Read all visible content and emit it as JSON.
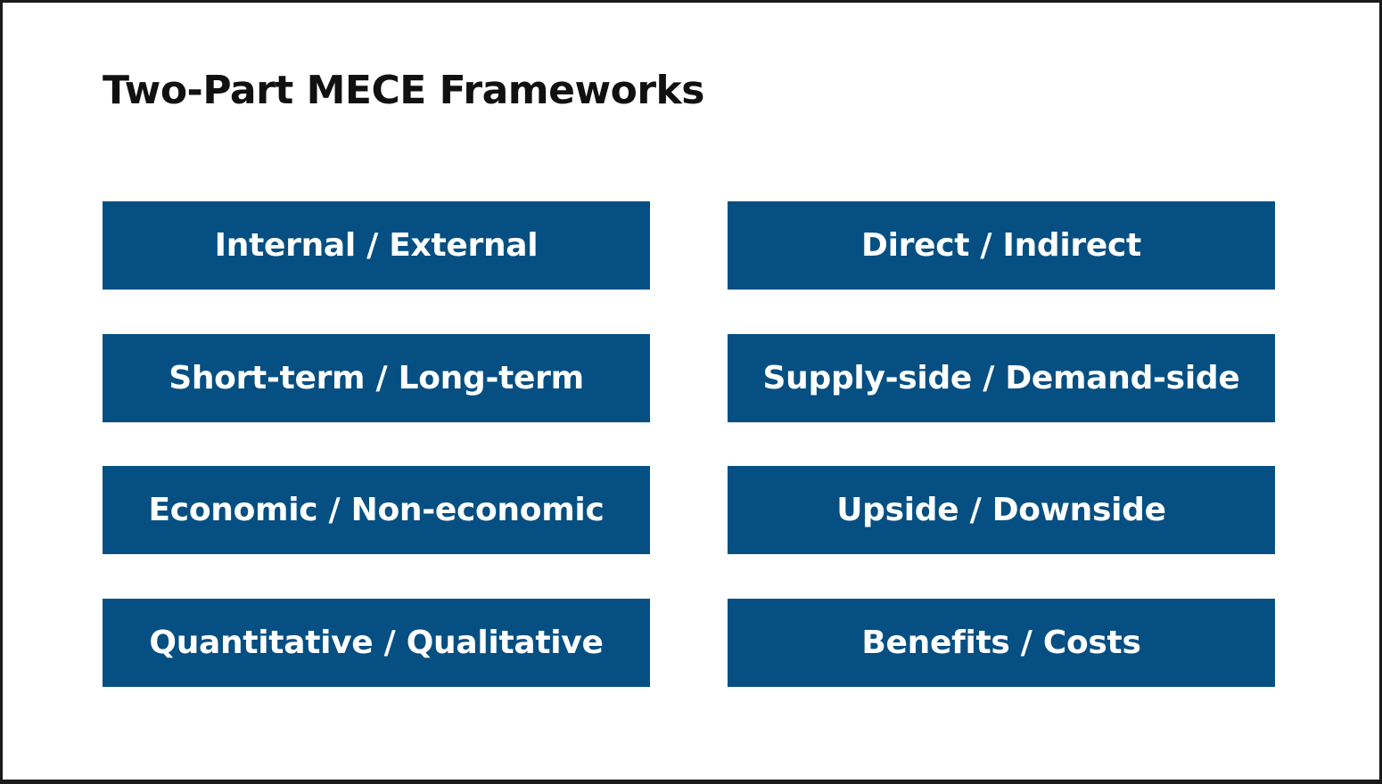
{
  "slide": {
    "title": "Two-Part MECE Frameworks",
    "colors": {
      "box_fill": "#054f82",
      "box_text": "#ffffff",
      "title_text": "#111111",
      "background": "#ffffff"
    },
    "frameworks": [
      "Internal / External",
      "Direct / Indirect",
      "Short-term / Long-term",
      "Supply-side / Demand-side",
      "Economic / Non-economic",
      "Upside / Downside",
      "Quantitative / Qualitative",
      "Benefits / Costs"
    ]
  }
}
